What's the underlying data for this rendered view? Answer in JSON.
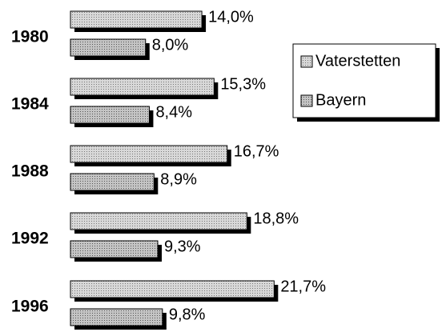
{
  "chart_data": {
    "type": "hbar",
    "categories": [
      "1980",
      "1984",
      "1988",
      "1992",
      "1996"
    ],
    "series": [
      {
        "name": "Vaterstetten",
        "color": "#d8d8d8",
        "values": [
          14.0,
          15.3,
          16.7,
          18.8,
          21.7
        ],
        "value_labels": [
          "14,0%",
          "15,3%",
          "16,7%",
          "18,8%",
          "21,7%"
        ]
      },
      {
        "name": "Bayern",
        "color": "#c4c4c4",
        "values": [
          8.0,
          8.4,
          8.9,
          9.3,
          9.8
        ],
        "value_labels": [
          "8,0%",
          "8,4%",
          "8,9%",
          "9,3%",
          "9,8%"
        ]
      }
    ],
    "legend": "right"
  }
}
